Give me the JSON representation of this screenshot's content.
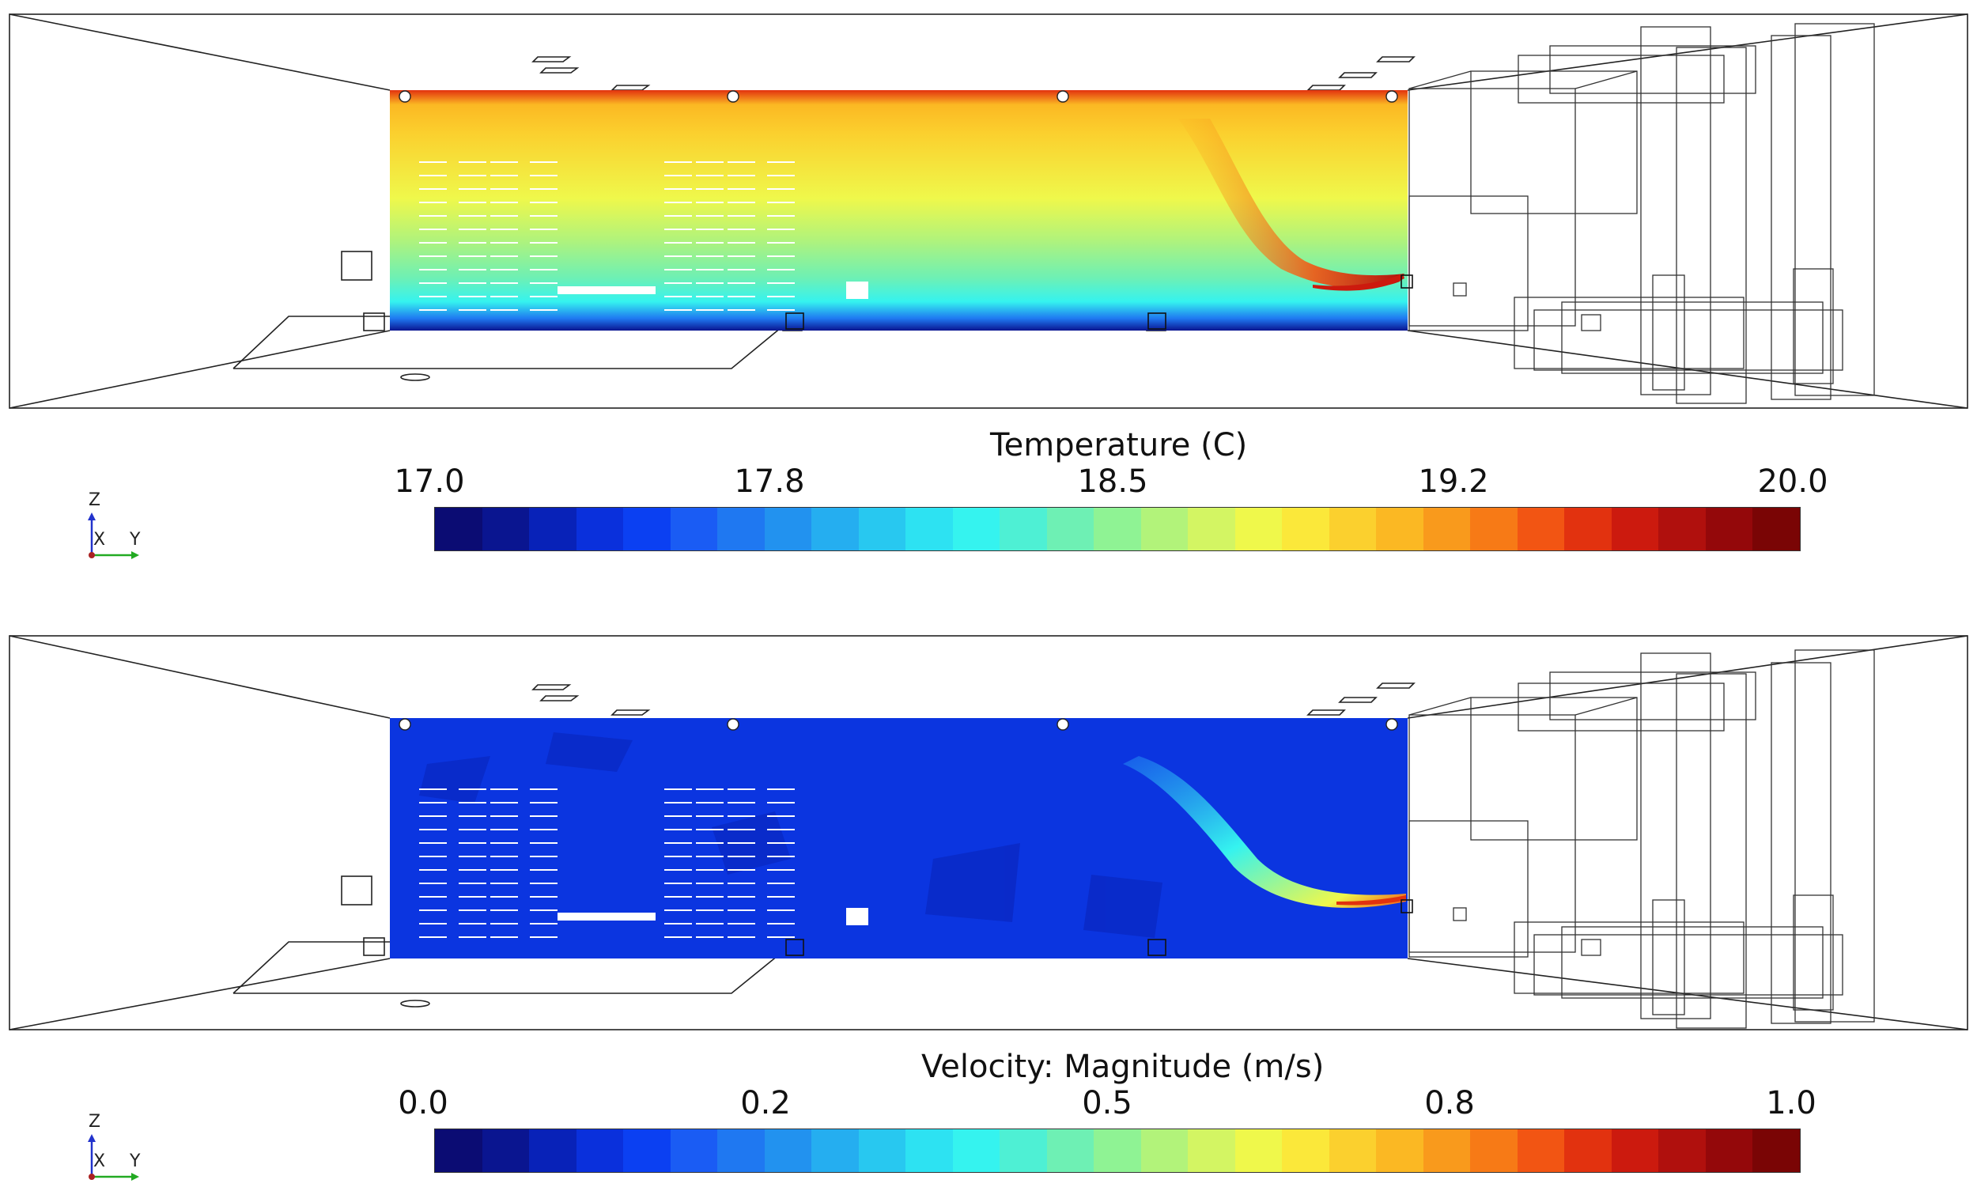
{
  "panels": [
    {
      "id": "temperature",
      "colorbar_title": "Temperature (C)",
      "ticks": [
        "17.0",
        "17.8",
        "18.5",
        "19.2",
        "20.0"
      ],
      "range": [
        17.0,
        20.0
      ]
    },
    {
      "id": "velocity",
      "colorbar_title": "Velocity: Magnitude (m/s)",
      "ticks": [
        "0.0",
        "0.2",
        "0.5",
        "0.8",
        "1.0"
      ],
      "range": [
        0.0,
        1.0
      ]
    }
  ],
  "axes_triad": {
    "z": "Z",
    "x": "X",
    "y": "Y"
  },
  "colormap": [
    "#0b0c73",
    "#0a1590",
    "#0822b8",
    "#0a30dc",
    "#0b40f2",
    "#1a5cf4",
    "#1f78f1",
    "#2292ef",
    "#25aef0",
    "#28c8f0",
    "#2de2f2",
    "#35f3ef",
    "#4ef0d4",
    "#6ef0b4",
    "#8ff394",
    "#b2f37a",
    "#d3f563",
    "#eff84b",
    "#fbe83a",
    "#fbd02e",
    "#fbb823",
    "#f99a1c",
    "#f77a16",
    "#f25513",
    "#e2320f",
    "#cc1a0e",
    "#b0100d",
    "#94080a",
    "#7a0505"
  ]
}
